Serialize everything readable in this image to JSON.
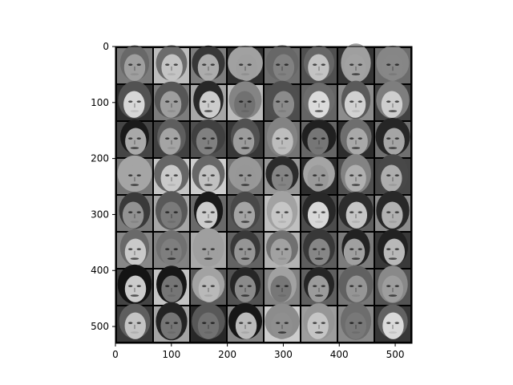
{
  "figure": {
    "type": "image-grid",
    "description_visible": "",
    "colormap": "gray",
    "grid": {
      "rows": 8,
      "cols": 8,
      "separator_color": "#000000"
    },
    "image_extent": [
      0,
      530
    ],
    "x_ticks": [
      "0",
      "100",
      "200",
      "300",
      "400",
      "500"
    ],
    "y_ticks": [
      "0",
      "100",
      "200",
      "300",
      "400",
      "500"
    ],
    "x_tick_values": [
      0,
      100,
      200,
      300,
      400,
      500
    ],
    "y_tick_values": [
      0,
      100,
      200,
      300,
      400,
      500
    ]
  },
  "colors": {
    "background": "#ffffff",
    "axes_frame": "#000000",
    "tile_separator": "#000000"
  }
}
